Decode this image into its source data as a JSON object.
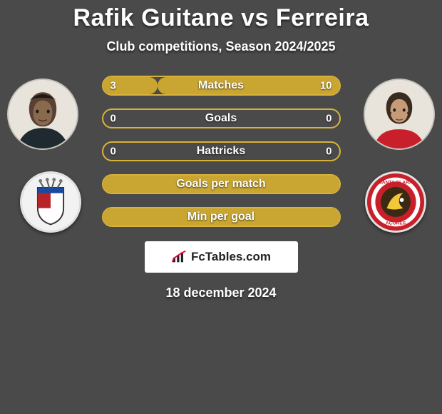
{
  "title": "Rafik Guitane vs Ferreira",
  "subtitle": "Club competitions, Season 2024/2025",
  "date": "18 december 2024",
  "brand": "FcTables.com",
  "colors": {
    "bar_border": "#d9b23a",
    "bar_fill": "#c9a632",
    "background": "#4a4a4a",
    "club_left_a": "#b8232a",
    "club_left_b": "#ffffff",
    "club_right_a": "#c8202b",
    "club_right_b": "#f2c83a"
  },
  "bars": [
    {
      "label": "Matches",
      "left": "3",
      "right": "10",
      "left_pct": 23,
      "right_pct": 77
    },
    {
      "label": "Goals",
      "left": "0",
      "right": "0",
      "left_pct": 0,
      "right_pct": 0
    },
    {
      "label": "Hattricks",
      "left": "0",
      "right": "0",
      "left_pct": 0,
      "right_pct": 0
    },
    {
      "label": "Goals per match",
      "left": "",
      "right": "",
      "left_pct": 100,
      "right_pct": 0
    },
    {
      "label": "Min per goal",
      "left": "",
      "right": "",
      "left_pct": 100,
      "right_pct": 0
    }
  ]
}
